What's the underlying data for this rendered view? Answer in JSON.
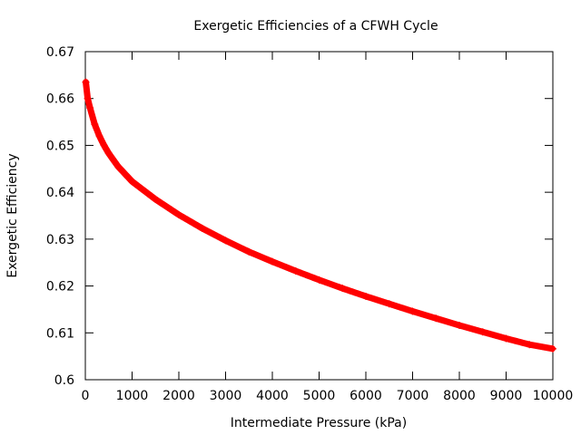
{
  "chart_data": {
    "type": "scatter",
    "title": "Exergetic Efficiencies of a CFWH Cycle",
    "xlabel": "Intermediate Pressure (kPa)",
    "ylabel": "Exergetic Efficiency",
    "xlim": [
      0,
      10000
    ],
    "ylim": [
      0.6,
      0.67
    ],
    "x_ticks": [
      0,
      1000,
      2000,
      3000,
      4000,
      5000,
      6000,
      7000,
      8000,
      9000,
      10000
    ],
    "y_ticks": [
      0.6,
      0.61,
      0.62,
      0.63,
      0.64,
      0.65,
      0.66,
      0.67
    ],
    "x_tick_labels": [
      "0",
      "1000",
      "2000",
      "3000",
      "4000",
      "5000",
      "6000",
      "7000",
      "8000",
      "9000",
      "10000"
    ],
    "y_tick_labels": [
      "0.6",
      "0.61",
      "0.62",
      "0.63",
      "0.64",
      "0.65",
      "0.66",
      "0.67"
    ],
    "grid": false,
    "legend": "none",
    "marker": "plus",
    "series_color": "#ff0000",
    "x": [
      10,
      50,
      100,
      200,
      300,
      400,
      500,
      700,
      1000,
      1500,
      2000,
      2500,
      3000,
      3500,
      4000,
      4500,
      5000,
      5500,
      6000,
      6500,
      7000,
      7500,
      8000,
      8500,
      9000,
      9500,
      10000
    ],
    "y": [
      0.6635,
      0.66,
      0.658,
      0.6545,
      0.652,
      0.65,
      0.6483,
      0.6455,
      0.6423,
      0.6385,
      0.6352,
      0.6323,
      0.6297,
      0.6273,
      0.6252,
      0.6232,
      0.6213,
      0.6195,
      0.6178,
      0.6162,
      0.6146,
      0.6131,
      0.6116,
      0.6102,
      0.6088,
      0.6075,
      0.6066
    ]
  }
}
